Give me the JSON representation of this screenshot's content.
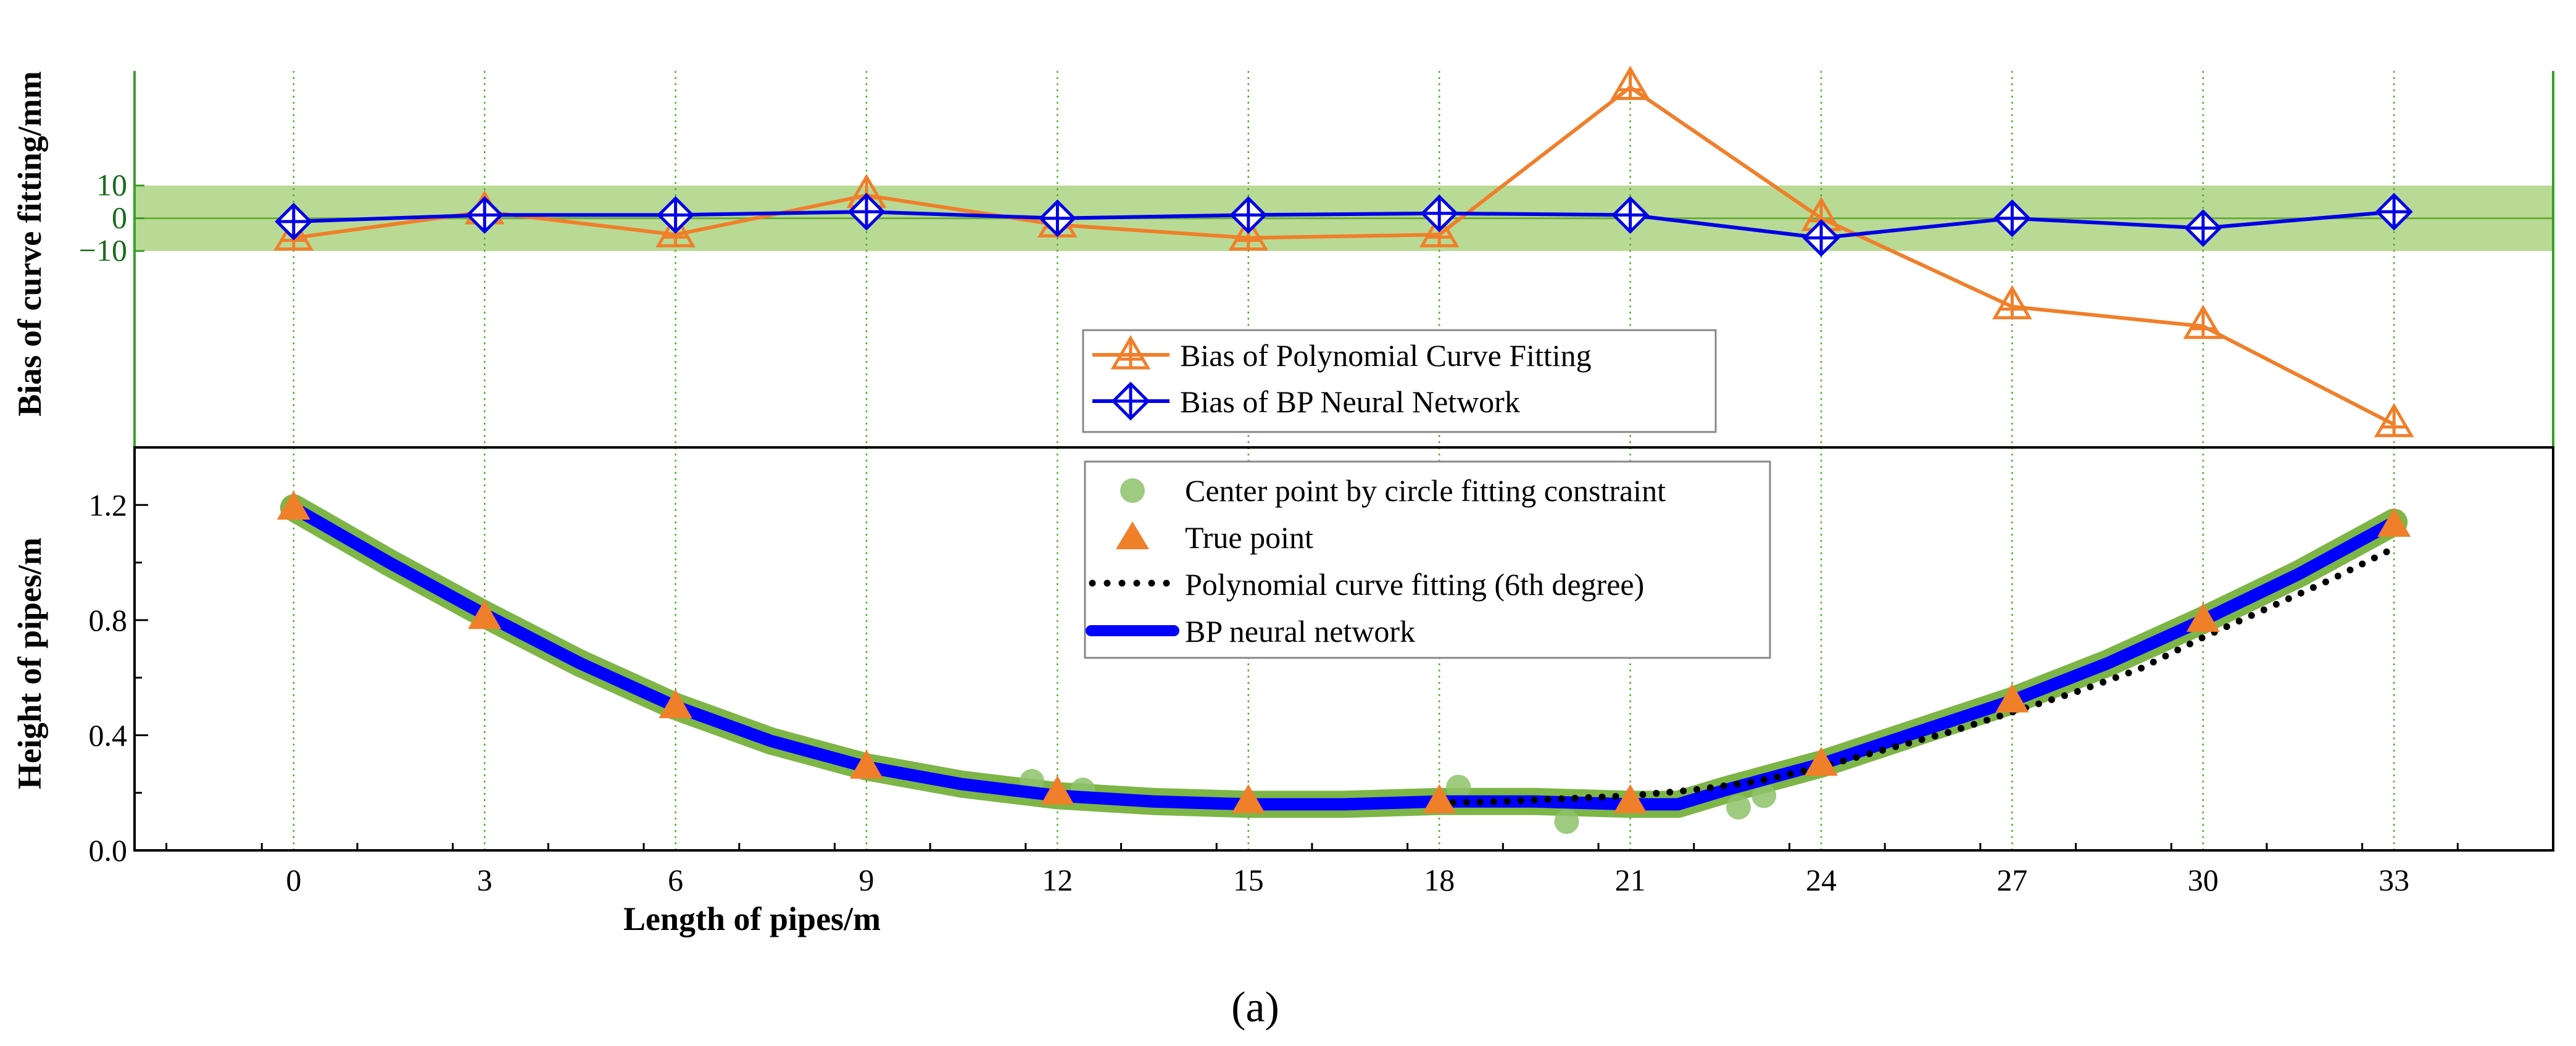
{
  "chart_data": {
    "type": "line",
    "caption": "(a)",
    "x_axis": {
      "label": "Length of pipes/m",
      "ticks": [
        0,
        3,
        6,
        9,
        12,
        15,
        18,
        21,
        24,
        27,
        30,
        33
      ],
      "tick_labels": [
        "0",
        "3",
        "6",
        "9",
        "12",
        "15",
        "18",
        "21",
        "24",
        "27",
        "30",
        "33"
      ],
      "range": [
        -2.5,
        35.5
      ],
      "minor_step": 1.5
    },
    "bias_panel": {
      "ylabel": "Bias of curve fitting/mm",
      "ylim": [
        -70,
        45
      ],
      "yticks": [
        10,
        0,
        -10
      ],
      "ytick_labels": [
        "10",
        "0",
        "−10"
      ],
      "tolerance_band": [
        -10,
        10
      ],
      "series": [
        {
          "name": "Bias of Polynomial Curve Fitting",
          "marker": "triangle",
          "color": "#f07f2a",
          "x": [
            0,
            3,
            6,
            9,
            12,
            15,
            18,
            21,
            24,
            27,
            30,
            33
          ],
          "values": [
            -6,
            2,
            -5,
            7,
            -2,
            -6,
            -5,
            40,
            0,
            -27,
            -33,
            -63
          ]
        },
        {
          "name": "Bias of BP Neural Network",
          "marker": "diamond",
          "color": "#0000e6",
          "x": [
            0,
            3,
            6,
            9,
            12,
            15,
            18,
            21,
            24,
            27,
            30,
            33
          ],
          "values": [
            -1,
            1,
            1,
            2,
            0,
            1,
            1.5,
            1,
            -6,
            0,
            -3,
            2
          ]
        }
      ]
    },
    "height_panel": {
      "ylabel": "Height of pipes/m",
      "ylim": [
        0,
        1.4
      ],
      "yticks": [
        0,
        0.4,
        0.8,
        1.2
      ],
      "ytick_labels": [
        "0.0",
        "0.4",
        "0.8",
        "1.2"
      ],
      "series": [
        {
          "name": "Center point by circle fitting constraint",
          "type": "scatter",
          "color": "#8dc26a",
          "x": [
            11.6,
            12.4,
            18.3,
            20.0,
            22.7,
            23.1
          ],
          "values": [
            0.24,
            0.21,
            0.22,
            0.1,
            0.15,
            0.19
          ],
          "band_x": [
            0,
            1.5,
            3,
            4.5,
            6,
            7.5,
            9,
            10.5,
            12,
            13.5,
            15,
            16.5,
            18,
            19.5,
            21,
            21.75,
            22.5,
            24,
            25.5,
            27,
            28.5,
            30,
            31.5,
            33
          ],
          "band_values": [
            1.19,
            1.0,
            0.82,
            0.65,
            0.5,
            0.38,
            0.29,
            0.23,
            0.19,
            0.17,
            0.16,
            0.16,
            0.17,
            0.17,
            0.16,
            0.16,
            0.21,
            0.3,
            0.41,
            0.52,
            0.65,
            0.8,
            0.96,
            1.14
          ]
        },
        {
          "name": "True point",
          "type": "scatter",
          "marker": "triangle",
          "color": "#f07f2a",
          "x": [
            0,
            3,
            6,
            9,
            12,
            15,
            18,
            21,
            24,
            27,
            30,
            33
          ],
          "values": [
            1.19,
            0.81,
            0.5,
            0.29,
            0.2,
            0.17,
            0.17,
            0.17,
            0.3,
            0.52,
            0.8,
            1.13
          ]
        },
        {
          "name": "Polynomial curve fitting (6th degree)",
          "type": "line",
          "style": "dotted",
          "color": "#000000",
          "x": [
            18,
            19,
            20,
            21,
            22,
            23,
            24,
            25,
            26,
            27,
            28,
            29,
            30,
            31,
            32,
            33
          ],
          "values": [
            0.165,
            0.17,
            0.18,
            0.19,
            0.21,
            0.24,
            0.29,
            0.35,
            0.41,
            0.48,
            0.55,
            0.63,
            0.74,
            0.84,
            0.94,
            1.05
          ]
        },
        {
          "name": "BP neural network",
          "type": "line",
          "color": "#0000ff",
          "x": [
            0,
            1.5,
            3,
            4.5,
            6,
            7.5,
            9,
            10.5,
            12,
            13.5,
            15,
            16.5,
            18,
            19.5,
            21,
            21.75,
            22.5,
            24,
            25.5,
            27,
            28.5,
            30,
            31.5,
            33
          ],
          "values": [
            1.19,
            1.0,
            0.82,
            0.65,
            0.5,
            0.38,
            0.29,
            0.23,
            0.19,
            0.17,
            0.16,
            0.16,
            0.17,
            0.17,
            0.16,
            0.16,
            0.21,
            0.3,
            0.41,
            0.52,
            0.65,
            0.8,
            0.96,
            1.14
          ]
        }
      ]
    },
    "colors": {
      "band": "#b5d88e",
      "band_edge": "#7db547",
      "axis_green": "#3aa02a",
      "grid_green": "#4caf2a",
      "band_line_green": "#6aaa3a"
    }
  }
}
